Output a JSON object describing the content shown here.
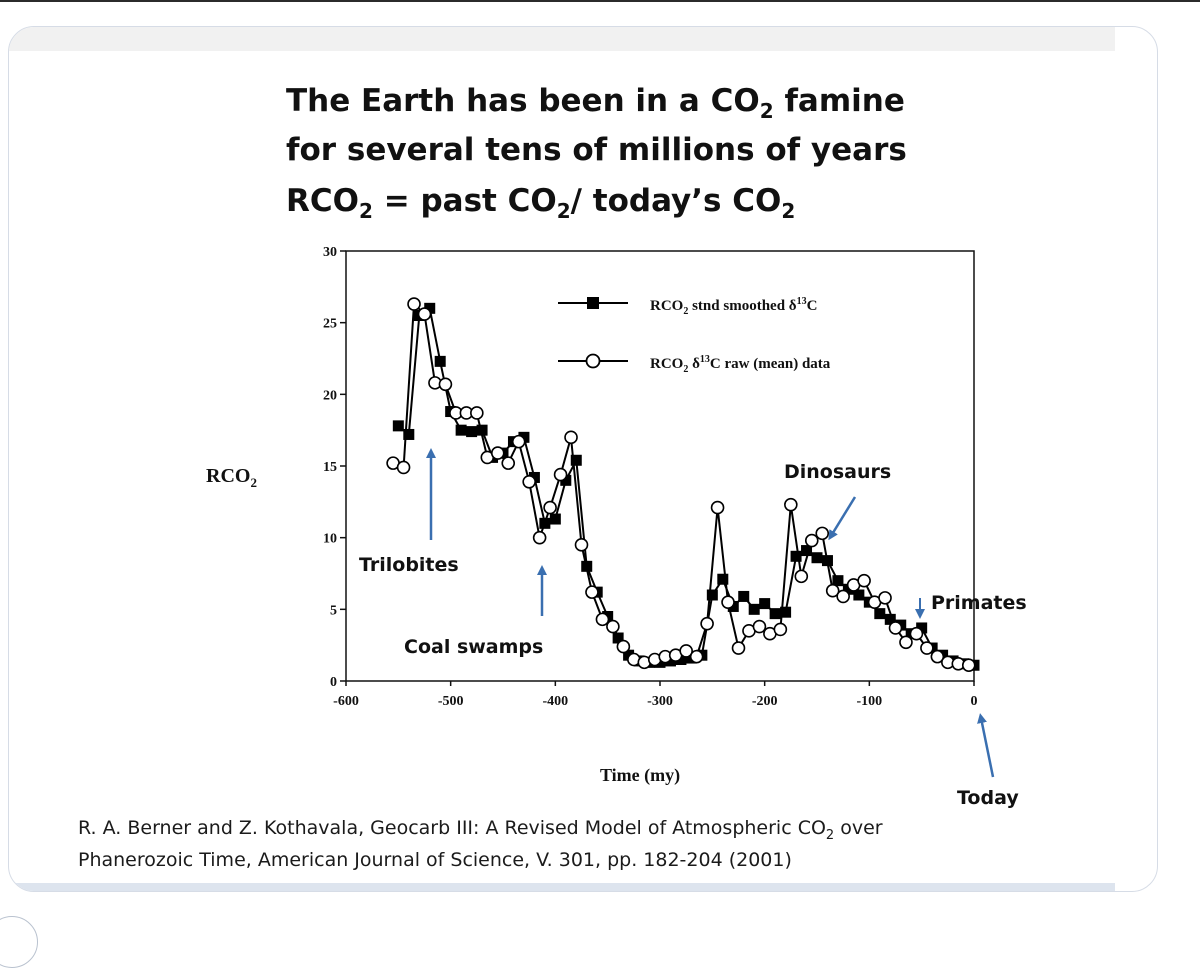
{
  "title": {
    "line1_pre": "The Earth has been in a CO",
    "line1_sub": "2",
    "line1_post": " famine",
    "line2": "for several tens of millions of years",
    "line3_a": "RCO",
    "line3_a_sub": "2",
    "line3_b": " = past CO",
    "line3_b_sub": "2",
    "line3_c": "/ today’s CO",
    "line3_c_sub": "2"
  },
  "legend": {
    "s1_pre": "RCO",
    "s1_sub": "2",
    "s1_mid": " stnd smoothed δ",
    "s1_sup": "13",
    "s1_post": "C",
    "s2_pre": "RCO",
    "s2_sub": "2",
    "s2_mid": " δ",
    "s2_sup": "13",
    "s2_post": "C raw (mean) data"
  },
  "annotations": {
    "trilobites": "Trilobites",
    "coal": "Coal swamps",
    "dinosaurs": "Dinosaurs",
    "primates": "Primates",
    "today": "Today"
  },
  "citation": {
    "line1_pre": "R. A. Berner and Z. Kothavala, Geocarb III: A Revised Model of Atmospheric CO",
    "line1_sub": "2",
    "line1_post": " over",
    "line2": "Phanerozoic Time,  American Journal of Science, V. 301, pp. 182-204 (2001)"
  },
  "colors": {
    "arrow": "#3a6fb0",
    "card_border": "#d6dce6",
    "series": "#000000"
  },
  "chart_data": {
    "type": "line",
    "xlabel": "Time (my)",
    "ylabel_pre": "RCO",
    "ylabel_sub": "2",
    "xlim": [
      -600,
      0
    ],
    "ylim": [
      0,
      30
    ],
    "xticks": [
      -600,
      -500,
      -400,
      -300,
      -200,
      -100,
      0
    ],
    "yticks": [
      0,
      5,
      10,
      15,
      20,
      25,
      30
    ],
    "xtick_labels": [
      "-600",
      "-500",
      "-400",
      "-300",
      "-200",
      "-100",
      "0"
    ],
    "ytick_labels": [
      "0",
      "5",
      "10",
      "15",
      "20",
      "25",
      "30"
    ],
    "grid": false,
    "legend_position": "top-right",
    "series": [
      {
        "name": "RCO2 stnd smoothed δ13C",
        "marker": "filled-square",
        "x": [
          -550,
          -540,
          -530,
          -520,
          -510,
          -500,
          -490,
          -480,
          -470,
          -460,
          -450,
          -440,
          -430,
          -420,
          -410,
          -400,
          -390,
          -380,
          -370,
          -360,
          -350,
          -340,
          -330,
          -320,
          -310,
          -300,
          -290,
          -280,
          -270,
          -260,
          -250,
          -240,
          -230,
          -220,
          -210,
          -200,
          -190,
          -180,
          -170,
          -160,
          -150,
          -140,
          -130,
          -120,
          -110,
          -100,
          -90,
          -80,
          -70,
          -60,
          -50,
          -40,
          -30,
          -20,
          -10,
          0
        ],
        "y": [
          17.8,
          17.2,
          25.5,
          26.0,
          22.3,
          18.8,
          17.5,
          17.4,
          17.5,
          15.6,
          15.9,
          16.7,
          17.0,
          14.2,
          11.0,
          11.3,
          14.0,
          15.4,
          8.0,
          6.2,
          4.5,
          3.0,
          1.8,
          1.4,
          1.3,
          1.3,
          1.4,
          1.5,
          1.6,
          1.8,
          6.0,
          7.1,
          5.2,
          5.9,
          5.0,
          5.4,
          4.7,
          4.8,
          8.7,
          9.1,
          8.6,
          8.4,
          7.0,
          6.4,
          6.0,
          5.5,
          4.7,
          4.3,
          3.9,
          3.3,
          3.7,
          2.3,
          1.8,
          1.4,
          1.2,
          1.1
        ]
      },
      {
        "name": "RCO2 δ13C raw (mean) data",
        "marker": "open-circle",
        "x": [
          -555,
          -545,
          -535,
          -525,
          -515,
          -505,
          -495,
          -485,
          -475,
          -465,
          -455,
          -445,
          -435,
          -425,
          -415,
          -405,
          -395,
          -385,
          -375,
          -365,
          -355,
          -345,
          -335,
          -325,
          -315,
          -305,
          -295,
          -285,
          -275,
          -265,
          -255,
          -245,
          -235,
          -225,
          -215,
          -205,
          -195,
          -185,
          -175,
          -165,
          -155,
          -145,
          -135,
          -125,
          -115,
          -105,
          -95,
          -85,
          -75,
          -65,
          -55,
          -45,
          -35,
          -25,
          -15,
          -5
        ],
        "y": [
          15.2,
          14.9,
          26.3,
          25.6,
          20.8,
          20.7,
          18.7,
          18.7,
          18.7,
          15.6,
          15.9,
          15.2,
          16.7,
          13.9,
          10.0,
          12.1,
          14.4,
          17.0,
          9.5,
          6.2,
          4.3,
          3.8,
          2.4,
          1.5,
          1.3,
          1.5,
          1.7,
          1.8,
          2.1,
          1.7,
          4.0,
          12.1,
          5.5,
          2.3,
          3.5,
          3.8,
          3.3,
          3.6,
          12.3,
          7.3,
          9.8,
          10.3,
          6.3,
          5.9,
          6.7,
          7.0,
          5.5,
          5.8,
          3.7,
          2.7,
          3.3,
          2.3,
          1.7,
          1.3,
          1.2,
          1.1
        ]
      }
    ]
  }
}
